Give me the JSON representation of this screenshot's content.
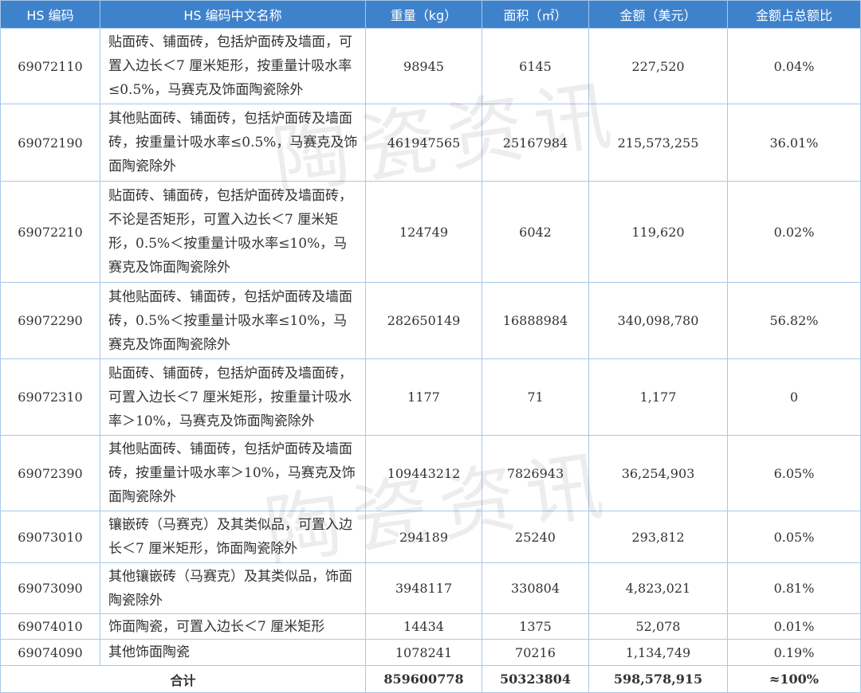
{
  "table": {
    "header": [
      "HS 编码",
      "HS 编码中文名称",
      "重量（kg）",
      "面积（㎡）",
      "金额（美元）",
      "金额占总额比"
    ],
    "rows": [
      [
        "69072110",
        "贴面砖、铺面砖，包括炉面砖及墙面，可置入边长＜7 厘米矩形，按重量计吸水率≤0.5%，马赛克及饰面陶瓷除外",
        "98945",
        "6145",
        "227,520",
        "0.04%"
      ],
      [
        "69072190",
        "其他贴面砖、铺面砖，包括炉面砖及墙面砖，按重量计吸水率≤0.5%，马赛克及饰面陶瓷除外",
        "461947565",
        "25167984",
        "215,573,255",
        "36.01%"
      ],
      [
        "69072210",
        "贴面砖、铺面砖，包括炉面砖及墙面砖，不论是否矩形，可置入边长＜7 厘米矩形，0.5%＜按重量计吸水率≤10%，马赛克及饰面陶瓷除外",
        "124749",
        "6042",
        "119,620",
        "0.02%"
      ],
      [
        "69072290",
        "其他贴面砖、铺面砖，包括炉面砖及墙面砖，0.5%＜按重量计吸水率≤10%，马赛克及饰面陶瓷除外",
        "282650149",
        "16888984",
        "340,098,780",
        "56.82%"
      ],
      [
        "69072310",
        "贴面砖、铺面砖，包括炉面砖及墙面砖，可置入边长＜7 厘米矩形，按重量计吸水率＞10%，马赛克及饰面陶瓷除外",
        "1177",
        "71",
        "1,177",
        "0"
      ],
      [
        "69072390",
        "其他贴面砖、铺面砖，包括炉面砖及墙面砖，按重量计吸水率＞10%，马赛克及饰面陶瓷除外",
        "109443212",
        "7826943",
        "36,254,903",
        "6.05%"
      ],
      [
        "69073010",
        "镶嵌砖（马赛克）及其类似品，可置入边长＜7 厘米矩形，饰面陶瓷除外",
        "294189",
        "25240",
        "293,812",
        "0.05%"
      ],
      [
        "69073090",
        "其他镶嵌砖（马赛克）及其类似品，饰面陶瓷除外",
        "3948117",
        "330804",
        "4,823,021",
        "0.81%"
      ],
      [
        "69074010",
        "饰面陶瓷，可置入边长＜7 厘米矩形",
        "14434",
        "1375",
        "52,078",
        "0.01%"
      ],
      [
        "69074090",
        "其他饰面陶瓷",
        "1078241",
        "70216",
        "1,134,749",
        "0.19%"
      ]
    ],
    "total": [
      "合计",
      "859600778",
      "50323804",
      "598,578,915",
      "≈100%"
    ]
  },
  "watermark": "陶瓷资讯"
}
